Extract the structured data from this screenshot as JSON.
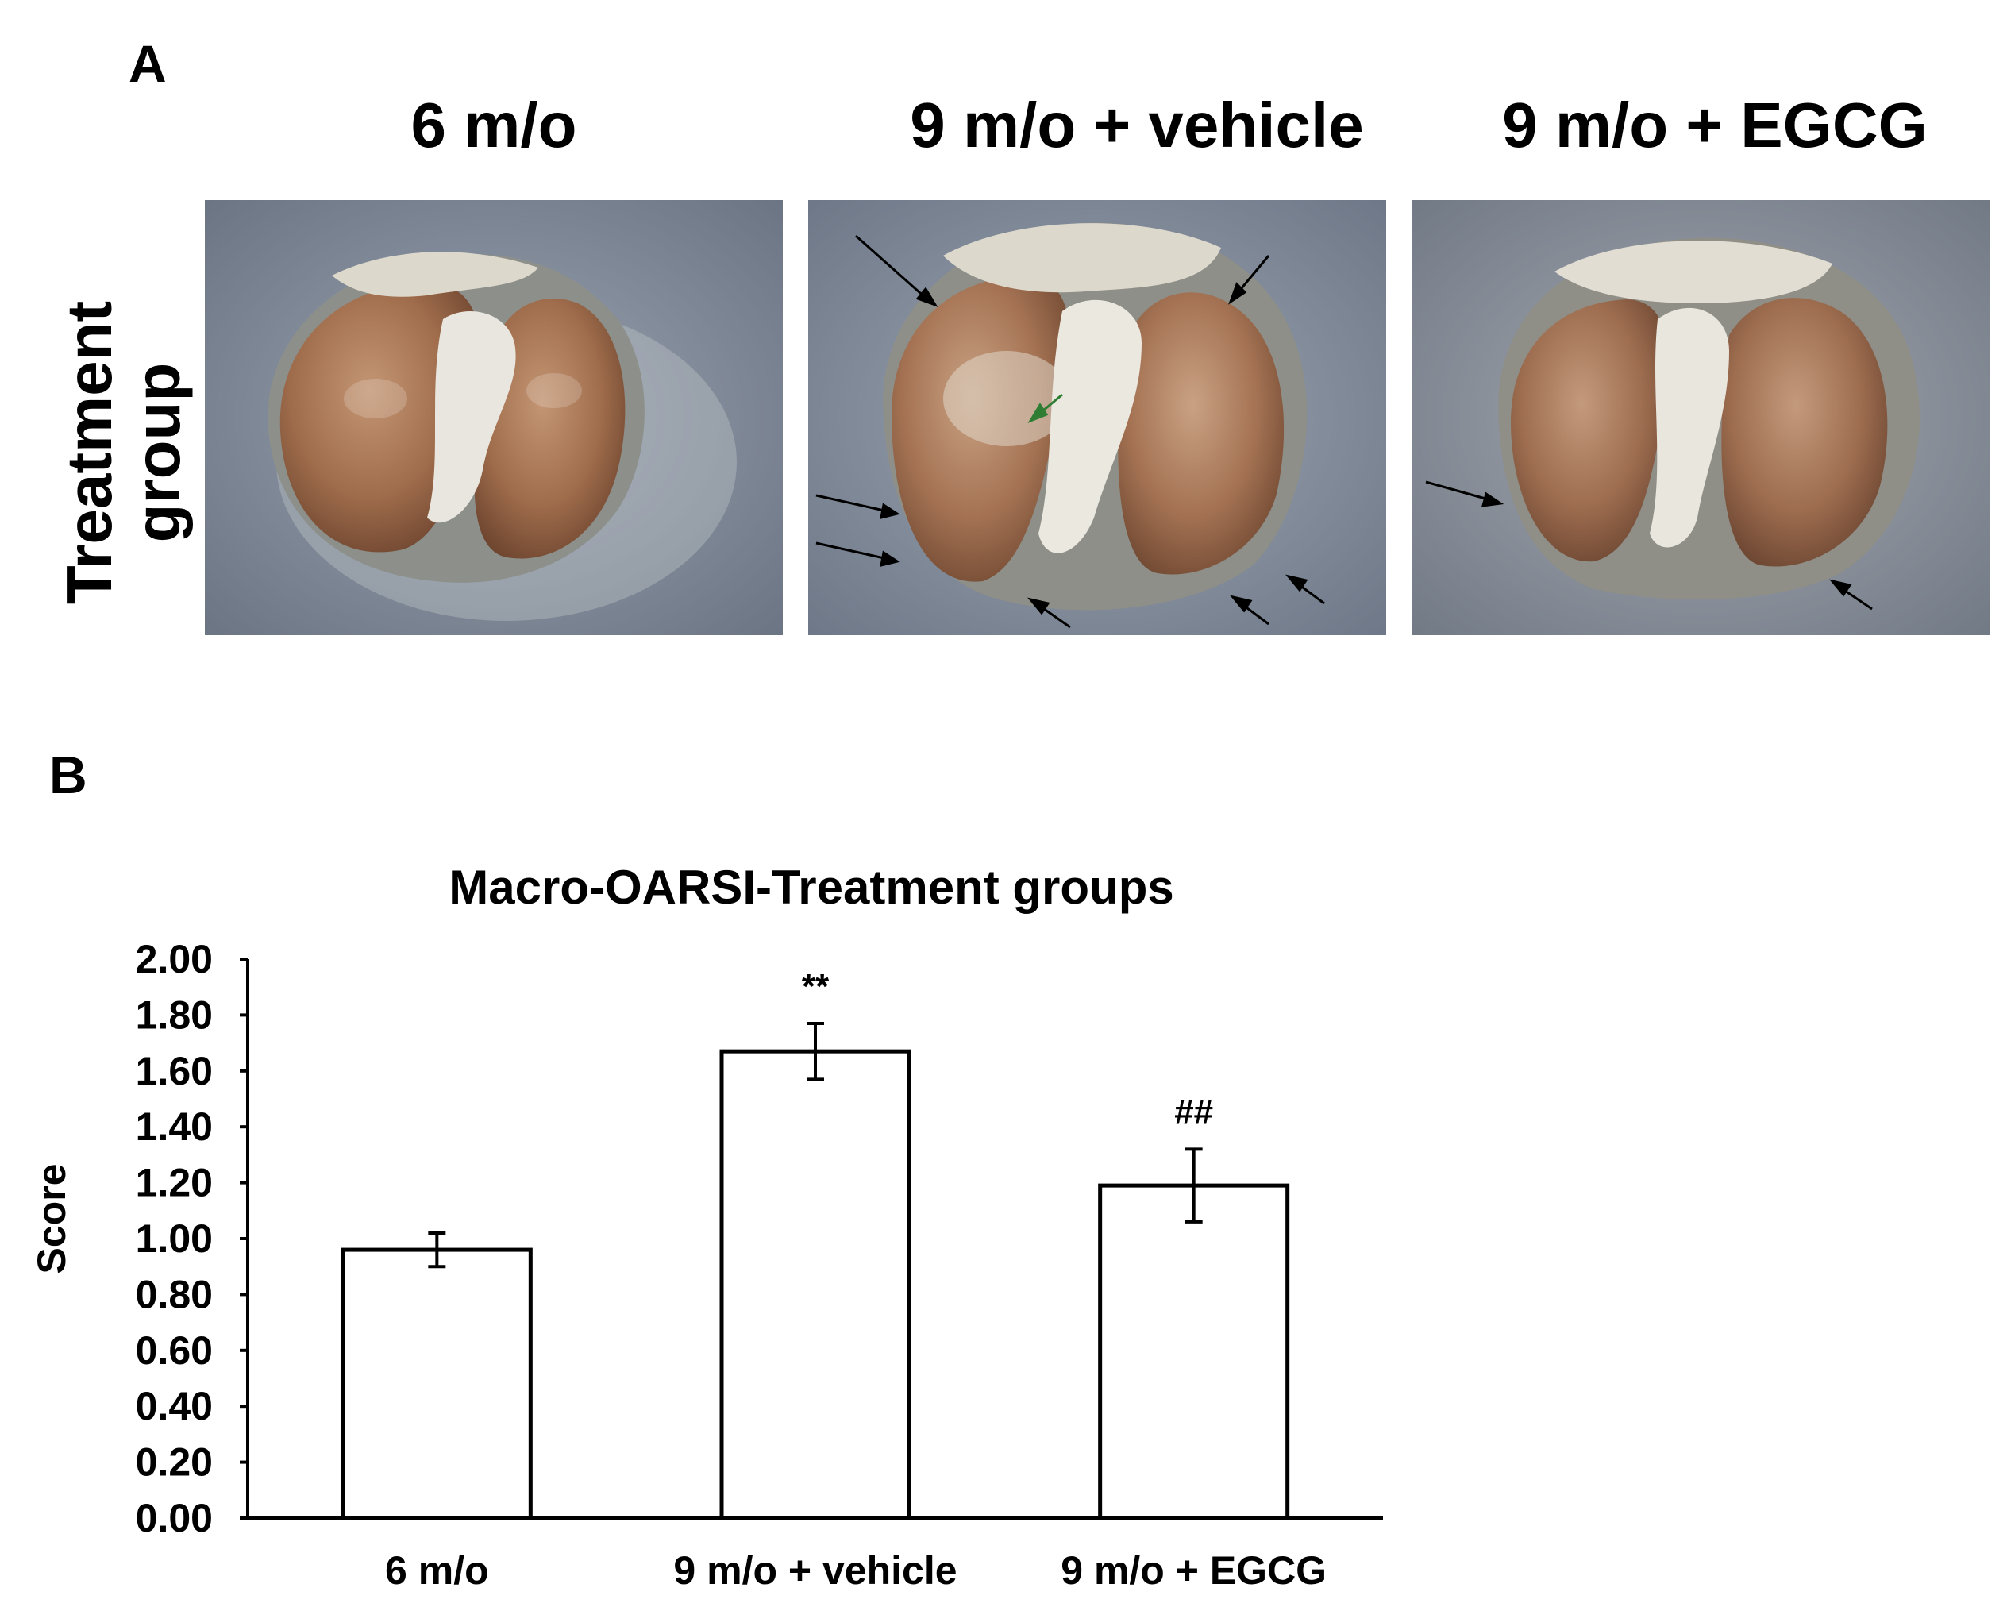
{
  "panel_a": {
    "letter": "A",
    "column_titles": [
      "6 m/o",
      "9 m/o + vehicle",
      "9 m/o + EGCG"
    ],
    "row_label": "Treatment\ngroup",
    "photos": [
      {
        "icon": "knee-joint-photo-6mo"
      },
      {
        "icon": "knee-joint-photo-9mo-vehicle"
      },
      {
        "icon": "knee-joint-photo-9mo-egcg"
      }
    ],
    "colors": {
      "cartilage": "#9c6a48",
      "background": "#7f8a99",
      "tissue": "#e6e4dc",
      "arrow": "#000000",
      "green_arrow": "#2e7d32"
    }
  },
  "panel_b": {
    "letter": "B"
  },
  "chart_data": {
    "type": "bar",
    "title": "Macro-OARSI-Treatment groups",
    "xlabel": "",
    "ylabel": "Score",
    "categories": [
      "6 m/o",
      "9 m/o + vehicle",
      "9 m/o + EGCG"
    ],
    "values": [
      0.96,
      1.67,
      1.19
    ],
    "error": [
      0.06,
      0.1,
      0.13
    ],
    "annotations": [
      "",
      "**",
      "##"
    ],
    "ylim": [
      0,
      2.0
    ],
    "yticks": [
      "0.00",
      "0.20",
      "0.40",
      "0.60",
      "0.80",
      "1.00",
      "1.20",
      "1.40",
      "1.60",
      "1.80",
      "2.00"
    ],
    "grid": false,
    "bar_fill": "#ffffff",
    "bar_stroke": "#000000"
  }
}
